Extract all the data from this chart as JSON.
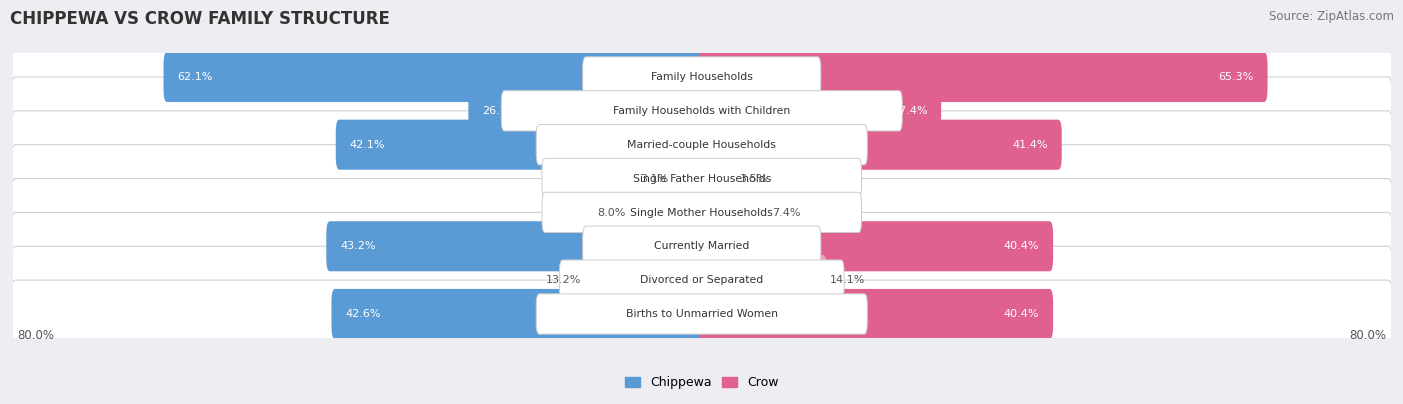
{
  "title": "CHIPPEWA VS CROW FAMILY STRUCTURE",
  "source": "Source: ZipAtlas.com",
  "categories": [
    "Family Households",
    "Family Households with Children",
    "Married-couple Households",
    "Single Father Households",
    "Single Mother Households",
    "Currently Married",
    "Divorced or Separated",
    "Births to Unmarried Women"
  ],
  "chippewa_values": [
    62.1,
    26.7,
    42.1,
    3.1,
    8.0,
    43.2,
    13.2,
    42.6
  ],
  "crow_values": [
    65.3,
    27.4,
    41.4,
    3.5,
    7.4,
    40.4,
    14.1,
    40.4
  ],
  "chippewa_color_large": "#5b9bd5",
  "chippewa_color_small": "#9fc5e8",
  "crow_color_large": "#e06090",
  "crow_color_small": "#f4a0b8",
  "max_value": 80.0,
  "x_axis_label_left": "80.0%",
  "x_axis_label_right": "80.0%",
  "background_color": "#ededf2",
  "row_bg_color": "#ffffff",
  "row_border_color": "#d0d0dc",
  "title_fontsize": 12,
  "source_fontsize": 8.5,
  "label_threshold": 20
}
